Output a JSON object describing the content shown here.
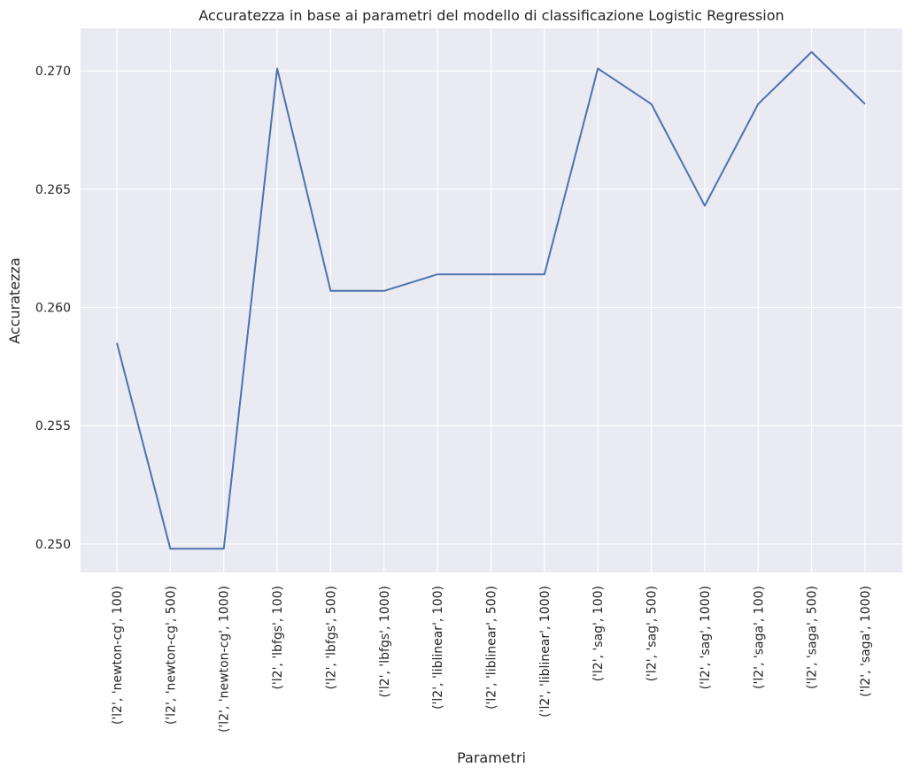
{
  "chart_data": {
    "type": "line",
    "title": "Accuratezza in base ai parametri del modello di classificazione Logistic Regression",
    "xlabel": "Parametri",
    "ylabel": "Accuratezza",
    "categories": [
      "('l2', 'newton-cg', 100)",
      "('l2', 'newton-cg', 500)",
      "('l2', 'newton-cg', 1000)",
      "('l2', 'lbfgs', 100)",
      "('l2', 'lbfgs', 500)",
      "('l2', 'lbfgs', 1000)",
      "('l2', 'liblinear', 100)",
      "('l2', 'liblinear', 500)",
      "('l2', 'liblinear', 1000)",
      "('l2', 'sag', 100)",
      "('l2', 'sag', 500)",
      "('l2', 'sag', 1000)",
      "('l2', 'saga', 100)",
      "('l2', 'saga', 500)",
      "('l2', 'saga', 1000)"
    ],
    "values": [
      0.2585,
      0.2498,
      0.2498,
      0.2701,
      0.2607,
      0.2607,
      0.2614,
      0.2614,
      0.2614,
      0.2701,
      0.2686,
      0.2643,
      0.2686,
      0.2708,
      0.2686
    ],
    "ylim": [
      0.2488,
      0.2718
    ],
    "yticks": [
      "0.250",
      "0.255",
      "0.260",
      "0.265",
      "0.270"
    ],
    "grid": true,
    "colors": {
      "line": "#4c72b0",
      "background": "#eaeaf2",
      "grid": "#ffffff"
    }
  }
}
